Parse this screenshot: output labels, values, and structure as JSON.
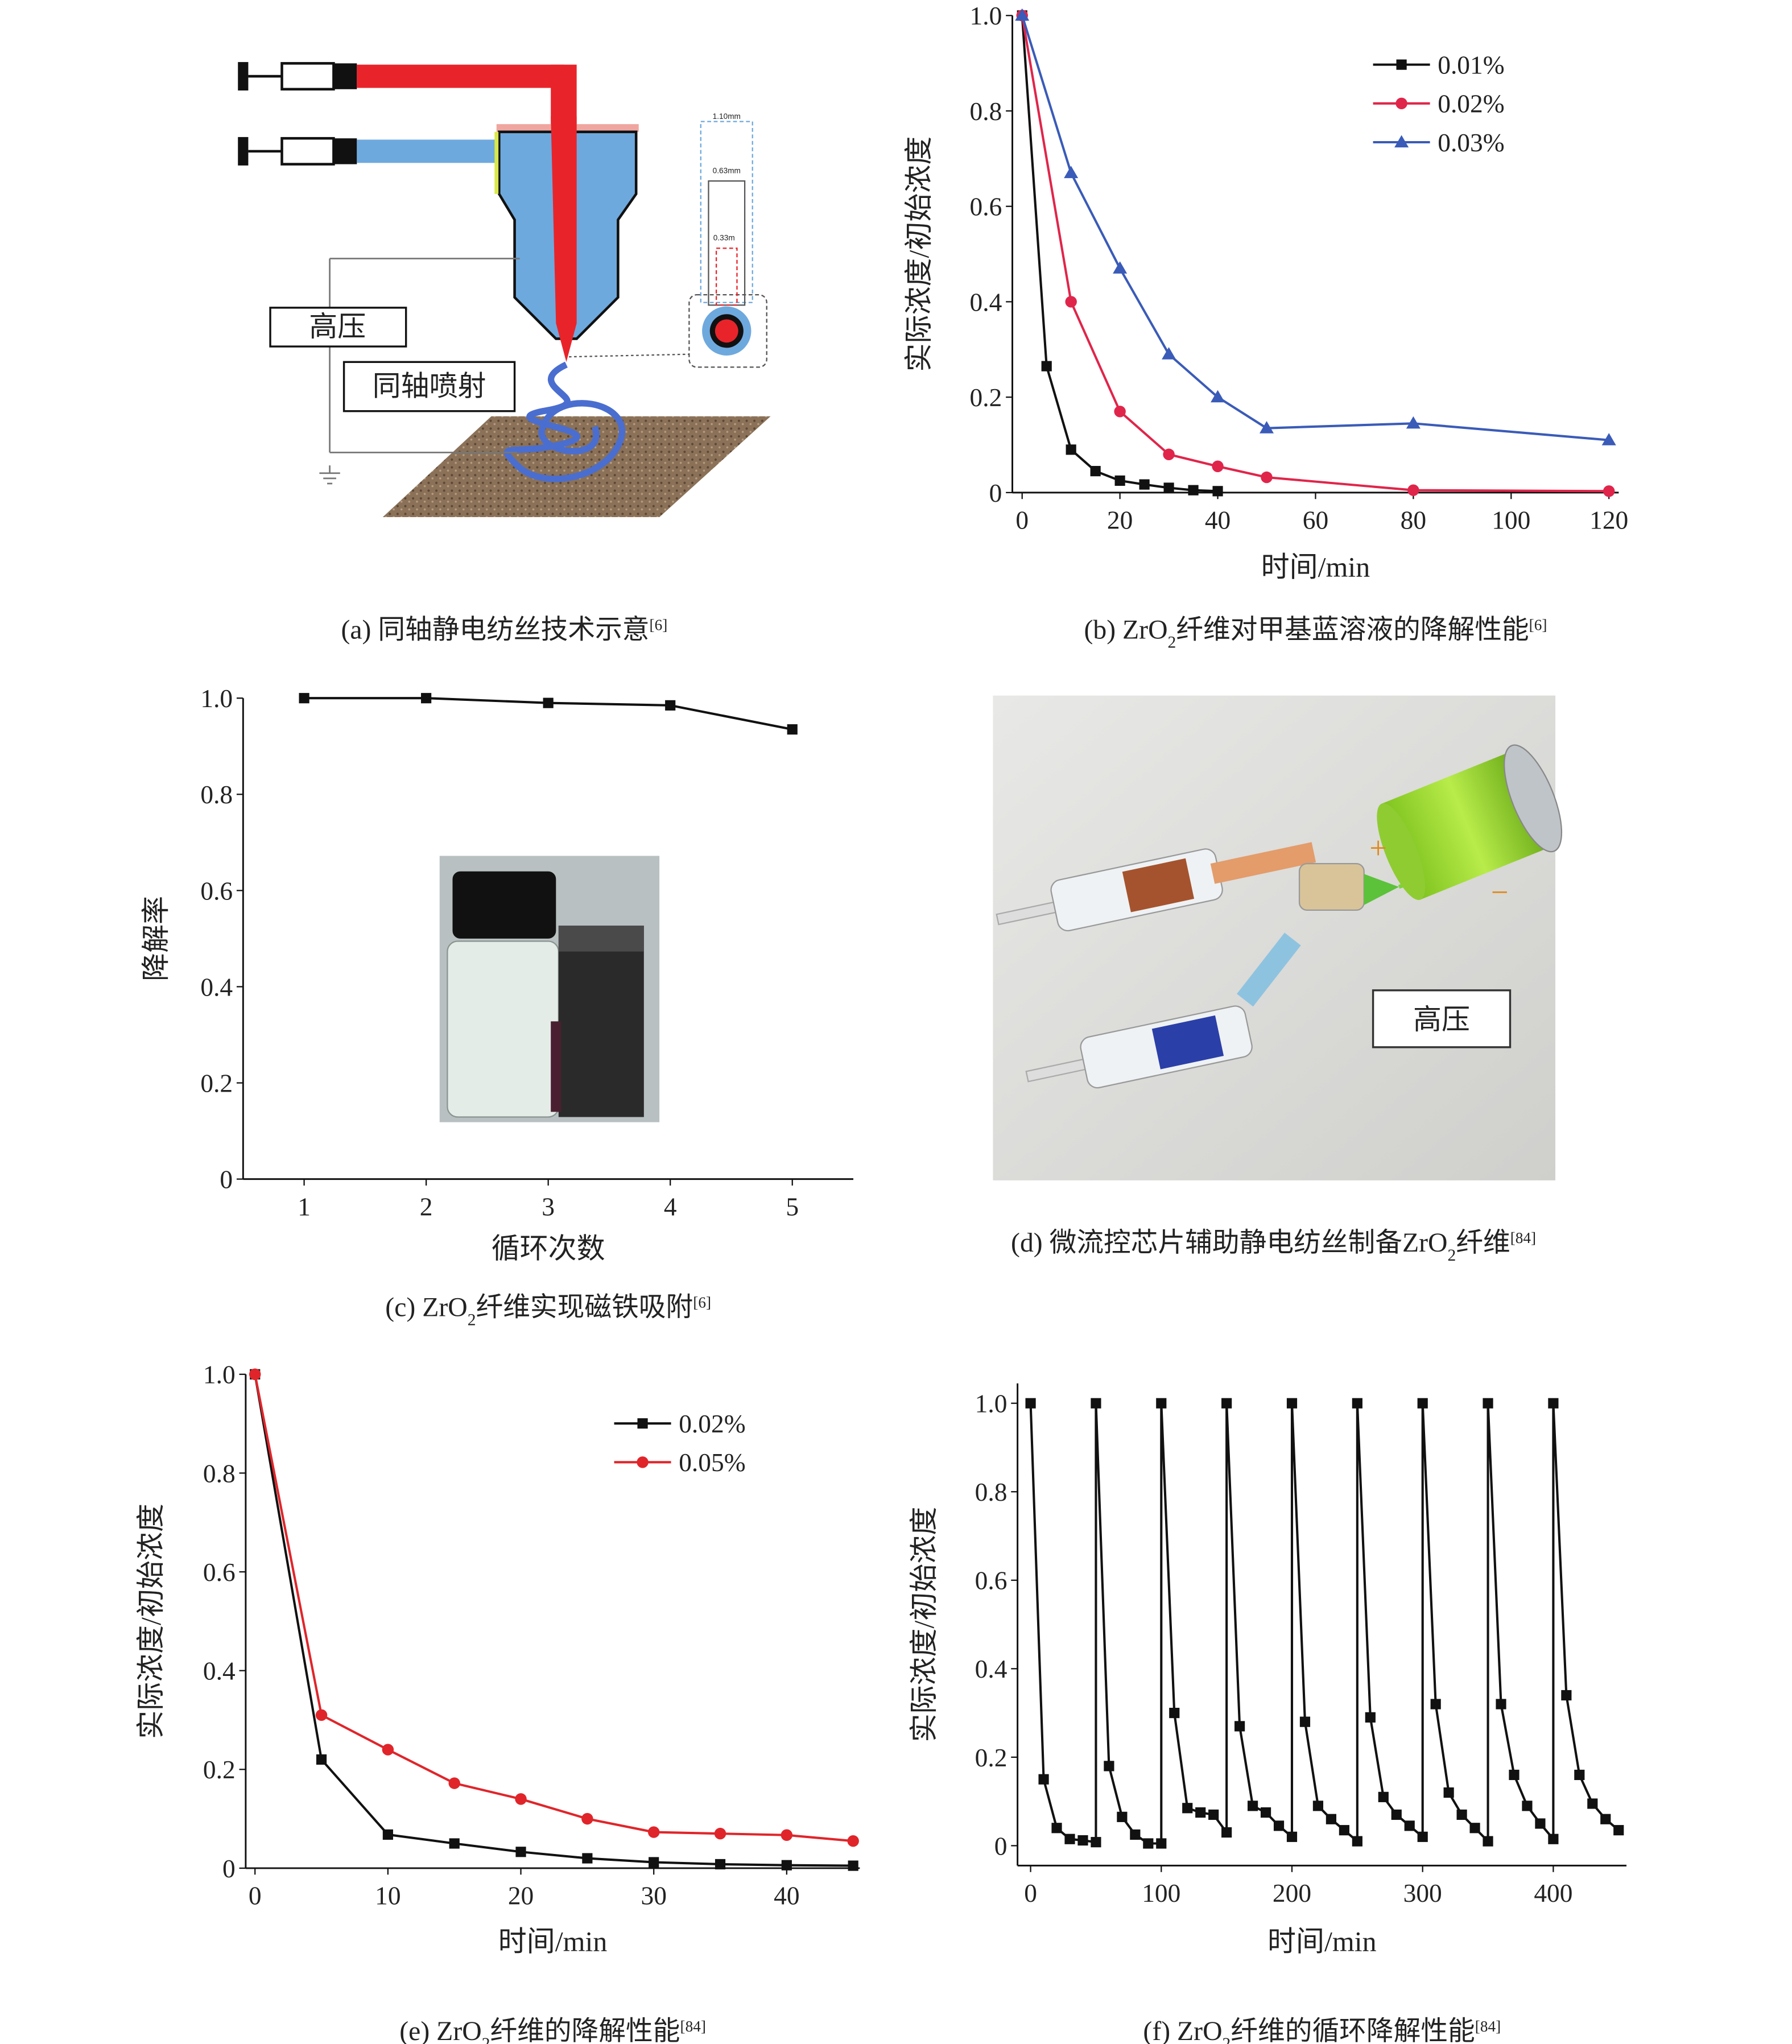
{
  "chart_data": [
    {
      "type": "line",
      "ylabel": "实际浓度/初始浓度",
      "xlabel": "时间/min",
      "caption": [
        {
          "t": "(b) ZrO"
        },
        {
          "sub": "2"
        },
        {
          "t": "纤维对甲基蓝溶液的降解性能"
        },
        {
          "sup": "[6]"
        }
      ],
      "xlim": [
        -2,
        122
      ],
      "ylim": [
        0,
        1
      ],
      "xticks": [
        0,
        20,
        40,
        60,
        80,
        100,
        120
      ],
      "yticks": [
        0,
        0.2,
        0.4,
        0.6,
        0.8,
        {
          "value": 1,
          "label": "1.0"
        }
      ],
      "legend": "upper right",
      "series": [
        {
          "name": "0.01%",
          "color": "#111111",
          "marker": "square",
          "x": [
            0,
            5,
            10,
            15,
            20,
            25,
            30,
            35,
            40
          ],
          "values": [
            1,
            0.265,
            0.09,
            0.045,
            0.025,
            0.017,
            0.01,
            0.005,
            0.003
          ]
        },
        {
          "name": "0.02%",
          "color": "#e0254a",
          "marker": "circle",
          "x": [
            0,
            10,
            20,
            30,
            40,
            50,
            80,
            120
          ],
          "values": [
            1,
            0.4,
            0.17,
            0.08,
            0.055,
            0.032,
            0.005,
            0.003
          ]
        },
        {
          "name": "0.03%",
          "color": "#3a5bb8",
          "marker": "triangle",
          "x": [
            0,
            10,
            20,
            30,
            40,
            50,
            80,
            120
          ],
          "values": [
            1,
            0.67,
            0.47,
            0.29,
            0.2,
            0.135,
            0.145,
            0.11
          ]
        }
      ]
    },
    {
      "type": "line",
      "ylabel": "降解率",
      "xlabel": "循环次数",
      "caption": [
        {
          "t": "(c) ZrO"
        },
        {
          "sub": "2"
        },
        {
          "t": "纤维实现磁铁吸附"
        },
        {
          "sup": "[6]"
        }
      ],
      "xlim": [
        0.5,
        5.5
      ],
      "ylim": [
        0,
        1
      ],
      "xticks": [
        1,
        2,
        3,
        4,
        5
      ],
      "yticks": [
        0,
        0.2,
        0.4,
        0.6,
        0.8,
        {
          "value": 1,
          "label": "1.0"
        }
      ],
      "series": [
        {
          "color": "#111111",
          "marker": "square",
          "x": [
            1,
            2,
            3,
            4,
            5
          ],
          "values": [
            1,
            1,
            0.99,
            0.985,
            0.935
          ]
        }
      ]
    },
    {
      "type": "line",
      "ylabel": "实际浓度/初始浓度",
      "xlabel": "时间/min",
      "caption": [
        {
          "t": "(e) ZrO"
        },
        {
          "sub": "2"
        },
        {
          "t": "纤维的降解性能"
        },
        {
          "sup": "[84]"
        }
      ],
      "xlim": [
        -0.7,
        45.5
      ],
      "ylim": [
        0,
        1
      ],
      "xticks": [
        0,
        10,
        20,
        30,
        40
      ],
      "yticks": [
        0,
        0.2,
        0.4,
        0.6,
        0.8,
        {
          "value": 1,
          "label": "1.0"
        }
      ],
      "legend": "upper right",
      "series": [
        {
          "name": "0.02%",
          "color": "#111111",
          "marker": "square",
          "x": [
            0,
            5,
            10,
            15,
            20,
            25,
            30,
            35,
            40,
            45
          ],
          "values": [
            1,
            0.22,
            0.068,
            0.05,
            0.033,
            0.02,
            0.012,
            0.008,
            0.006,
            0.005
          ]
        },
        {
          "name": "0.05%",
          "color": "#e0252a",
          "marker": "circle",
          "x": [
            0,
            5,
            10,
            15,
            20,
            25,
            30,
            35,
            40,
            45
          ],
          "values": [
            1,
            0.31,
            0.24,
            0.172,
            0.14,
            0.1,
            0.073,
            0.07,
            0.067,
            0.055
          ]
        }
      ]
    },
    {
      "type": "line",
      "ylabel": "实际浓度/初始浓度",
      "xlabel": "时间/min",
      "caption": [
        {
          "t": "(f) ZrO"
        },
        {
          "sub": "2"
        },
        {
          "t": "纤维的循环降解性能"
        },
        {
          "sup": "[84]"
        }
      ],
      "xlim": [
        -10,
        456
      ],
      "ylim": [
        -0.045,
        1.045
      ],
      "xticks": [
        0,
        100,
        200,
        300,
        400
      ],
      "yticks": [
        0,
        0.2,
        0.4,
        0.6,
        0.8,
        {
          "value": 1,
          "label": "1.0"
        }
      ],
      "series": [
        {
          "color": "#111111",
          "marker": "square",
          "x": [
            0,
            10,
            20,
            30,
            40,
            50,
            50,
            60,
            70,
            80,
            90,
            100,
            100,
            110,
            120,
            130,
            140,
            150,
            150,
            160,
            170,
            180,
            190,
            200,
            200,
            210,
            220,
            230,
            240,
            250,
            250,
            260,
            270,
            280,
            290,
            300,
            300,
            310,
            320,
            330,
            340,
            350,
            350,
            360,
            370,
            380,
            390,
            400,
            400,
            410,
            420,
            430,
            440,
            450
          ],
          "values": [
            1,
            0.15,
            0.04,
            0.015,
            0.012,
            0.008,
            1,
            0.18,
            0.065,
            0.025,
            0.005,
            0.005,
            1,
            0.3,
            0.085,
            0.075,
            0.07,
            0.03,
            1,
            0.27,
            0.09,
            0.075,
            0.045,
            0.02,
            1,
            0.28,
            0.09,
            0.06,
            0.035,
            0.01,
            1,
            0.29,
            0.11,
            0.07,
            0.045,
            0.02,
            1,
            0.32,
            0.12,
            0.07,
            0.04,
            0.01,
            1,
            0.32,
            0.16,
            0.09,
            0.05,
            0.015,
            1,
            0.34,
            0.16,
            0.095,
            0.06,
            0.035
          ]
        }
      ]
    }
  ],
  "diagrams": {
    "a": {
      "labels": [
        "高压",
        "同轴喷射"
      ],
      "dims": [
        "1.10mm",
        "0.63mm",
        "0.33m"
      ],
      "caption": [
        {
          "t": "(a) 同轴静电纺丝技术示意"
        },
        {
          "sup": "[6]"
        }
      ]
    },
    "d": {
      "labels": [
        "高压",
        "+",
        "−"
      ],
      "caption": [
        {
          "t": "(d) 微流控芯片辅助静电纺丝制备ZrO"
        },
        {
          "sub": "2"
        },
        {
          "t": "纤维"
        },
        {
          "sup": "[84]"
        }
      ]
    }
  }
}
